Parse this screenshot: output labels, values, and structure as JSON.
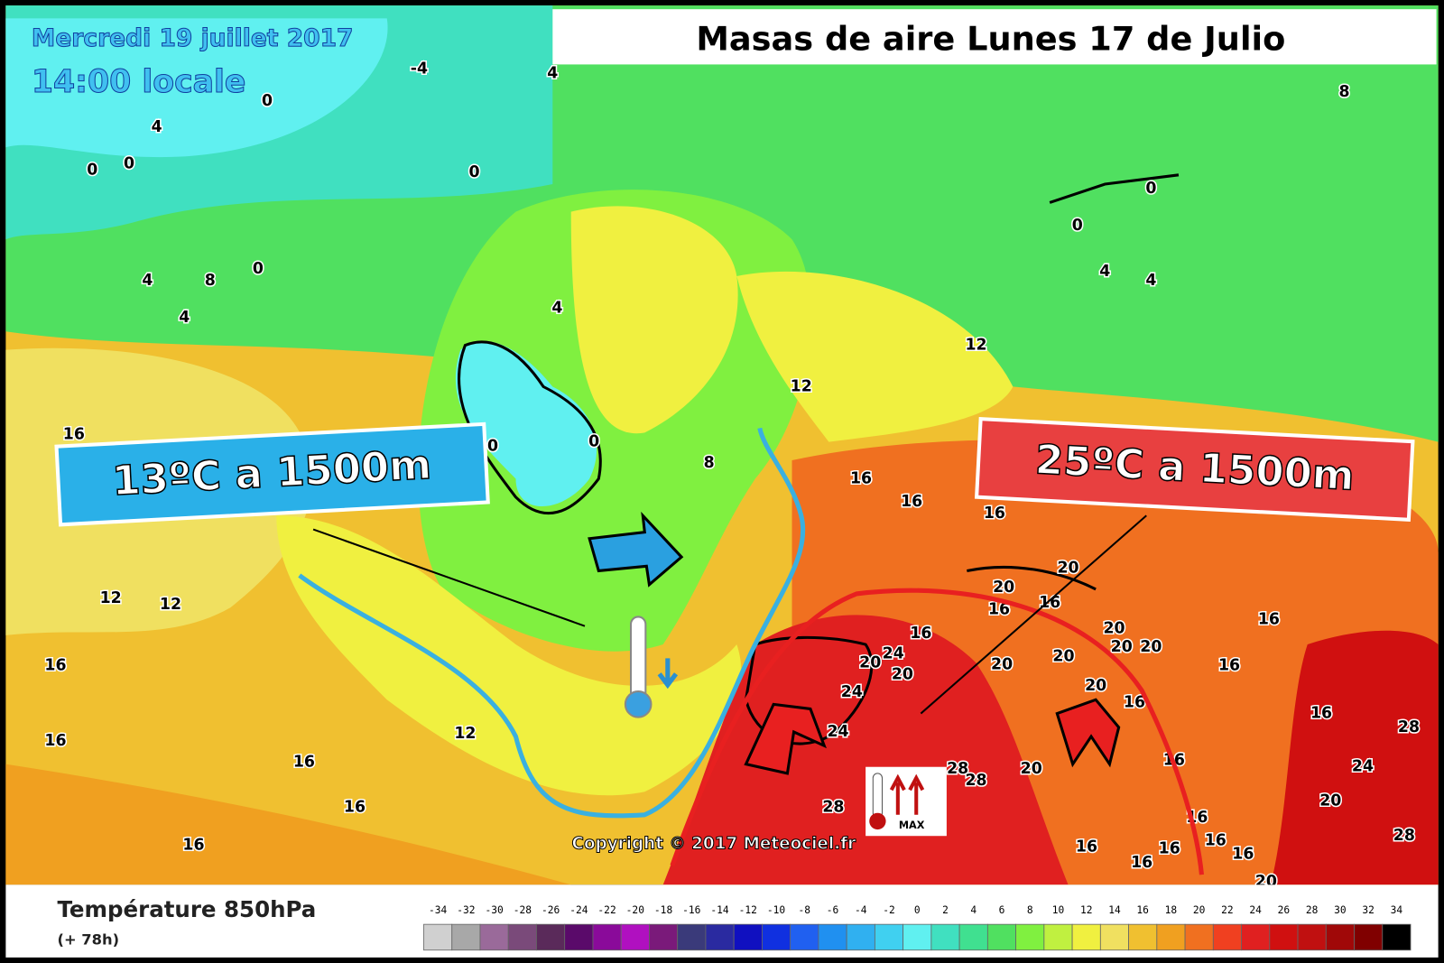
{
  "header": {
    "date": "Mercredi 19 juillet 2017",
    "time": "14:00 locale",
    "title": "Masas de aire Lunes 17 de Julio"
  },
  "callouts": {
    "cold": "13ºC a 1500m",
    "warm": "25ºC a 1500m",
    "max_icon": "MAX"
  },
  "copyright": "Copyright © 2017 Meteociel.fr",
  "legend": {
    "title": "Température 850hPa",
    "subtitle": "(+ 78h)",
    "ticks": [
      -34,
      -32,
      -30,
      -28,
      -26,
      -24,
      -22,
      -20,
      -18,
      -16,
      -14,
      -12,
      -10,
      -8,
      -6,
      -4,
      -2,
      0,
      2,
      4,
      6,
      8,
      10,
      12,
      14,
      16,
      18,
      20,
      22,
      24,
      26,
      28,
      30,
      32,
      34
    ],
    "colors": [
      "#d0d0d0",
      "#a8a8a8",
      "#9a6a9a",
      "#7a4a7a",
      "#5a2a5a",
      "#5a0a6a",
      "#8a0a9a",
      "#b010c0",
      "#7a1a7a",
      "#3a3a7a",
      "#2a2aa0",
      "#1010c0",
      "#1030e0",
      "#2060f0",
      "#2090f0",
      "#30b0f0",
      "#40d0f0",
      "#60f0f0",
      "#40e0c0",
      "#40e090",
      "#50e060",
      "#80f040",
      "#c0f040",
      "#f0f040",
      "#f0e060",
      "#f0c030",
      "#f0a020",
      "#f07020",
      "#f04020",
      "#e02020",
      "#d01010",
      "#c01010",
      "#a00808",
      "#800000",
      "#000000"
    ]
  },
  "contour_labels": [
    -4,
    4,
    0,
    4,
    0,
    0,
    0,
    8,
    0,
    0,
    4,
    4,
    4,
    4,
    8,
    0,
    4,
    12,
    12,
    0,
    0,
    8,
    16,
    16,
    16,
    16,
    12,
    12,
    16,
    16,
    12,
    16,
    16,
    16,
    20,
    20,
    16,
    16,
    16,
    24,
    20,
    20,
    24,
    20,
    20,
    20,
    20,
    16,
    16,
    16,
    28,
    24,
    20,
    28,
    16,
    20,
    28,
    28,
    24,
    28,
    16,
    16,
    16,
    16,
    16,
    16,
    20,
    16,
    20,
    20
  ]
}
